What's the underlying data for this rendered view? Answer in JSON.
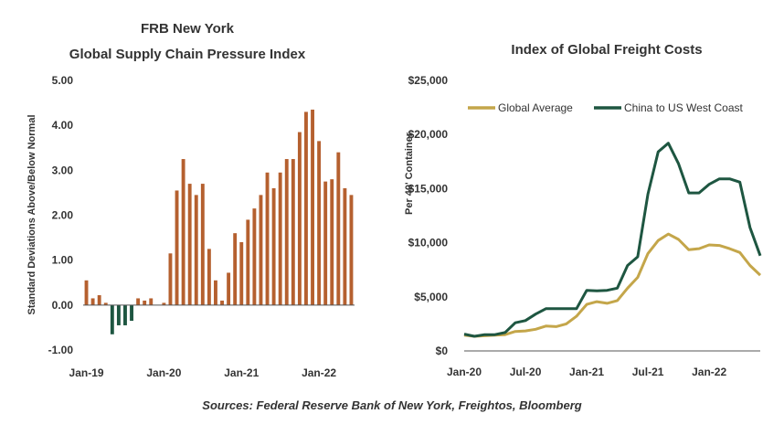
{
  "source_note": "Sources: Federal Reserve Bank of New York, Freightos, Bloomberg",
  "chart_data": [
    {
      "type": "bar",
      "title_lines": [
        "FRB New York",
        "Global Supply Chain Pressure Index"
      ],
      "ylabel": "Standard Deviations Above/Below Normal",
      "ylim": [
        -1,
        5
      ],
      "yticks": [
        5,
        4,
        3,
        2,
        1,
        0,
        -1
      ],
      "ytick_labels": [
        "5.00",
        "4.00",
        "3.00",
        "2.00",
        "1.00",
        "0.00",
        "-1.00"
      ],
      "xtick_labels": [
        {
          "label": "Jan-19",
          "index": 0
        },
        {
          "label": "Jan-20",
          "index": 12
        },
        {
          "label": "Jan-21",
          "index": 24
        },
        {
          "label": "Jan-22",
          "index": 36
        }
      ],
      "positive_color": "#B5602F",
      "negative_color": "#1E5641",
      "values": [
        0.55,
        0.15,
        0.22,
        0.05,
        -0.65,
        -0.45,
        -0.45,
        -0.35,
        0.15,
        0.1,
        0.15,
        0.0,
        0.05,
        1.15,
        2.55,
        3.25,
        2.7,
        2.45,
        2.7,
        1.25,
        0.55,
        0.1,
        0.72,
        1.6,
        1.4,
        1.9,
        2.15,
        2.45,
        2.95,
        2.6,
        2.95,
        3.25,
        3.25,
        3.85,
        4.3,
        4.35,
        3.65,
        2.75,
        2.8,
        3.4,
        2.6,
        2.45
      ]
    },
    {
      "type": "line",
      "title": "Index of Global Freight Costs",
      "ylabel": "Per 40' Container",
      "ylim": [
        0,
        25000
      ],
      "yticks": [
        0,
        5000,
        10000,
        15000,
        20000,
        25000
      ],
      "ytick_labels": [
        "$0",
        "$5,000",
        "$10,000",
        "$15,000",
        "$20,000",
        "$25,000"
      ],
      "xtick_labels": [
        {
          "label": "Jan-20",
          "index": 0
        },
        {
          "label": "Jul-20",
          "index": 6
        },
        {
          "label": "Jan-21",
          "index": 12
        },
        {
          "label": "Jul-21",
          "index": 18
        },
        {
          "label": "Jan-22",
          "index": 24
        }
      ],
      "legend": "top",
      "series": [
        {
          "name": "Global Average",
          "color": "#C4A64A",
          "values": [
            1450,
            1350,
            1400,
            1450,
            1500,
            1800,
            1850,
            2000,
            2300,
            2250,
            2500,
            3200,
            4300,
            4550,
            4400,
            4650,
            5800,
            6800,
            9000,
            10200,
            10800,
            10300,
            9350,
            9450,
            9800,
            9750,
            9450,
            9100,
            7900,
            7000
          ]
        },
        {
          "name": "China to US West Coast",
          "color": "#1E5641",
          "values": [
            1550,
            1350,
            1500,
            1500,
            1700,
            2600,
            2800,
            3400,
            3900,
            3900,
            3900,
            3900,
            5600,
            5550,
            5600,
            5800,
            7900,
            8700,
            14500,
            18400,
            19200,
            17300,
            14600,
            14600,
            15400,
            15900,
            15900,
            15600,
            11400,
            8800
          ]
        }
      ]
    }
  ]
}
